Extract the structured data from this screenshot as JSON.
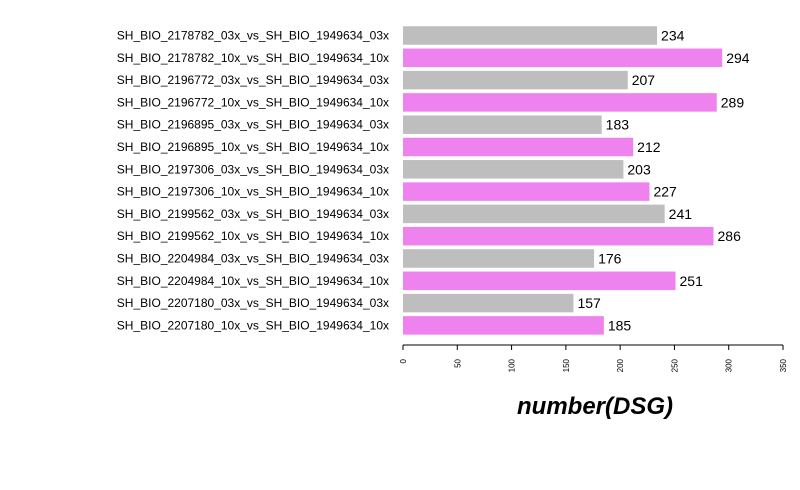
{
  "chart_data": {
    "type": "bar",
    "orientation": "horizontal",
    "categories": [
      "SH_BIO_2178782_03x_vs_SH_BIO_1949634_03x",
      "SH_BIO_2178782_10x_vs_SH_BIO_1949634_10x",
      "SH_BIO_2196772_03x_vs_SH_BIO_1949634_03x",
      "SH_BIO_2196772_10x_vs_SH_BIO_1949634_10x",
      "SH_BIO_2196895_03x_vs_SH_BIO_1949634_03x",
      "SH_BIO_2196895_10x_vs_SH_BIO_1949634_10x",
      "SH_BIO_2197306_03x_vs_SH_BIO_1949634_03x",
      "SH_BIO_2197306_10x_vs_SH_BIO_1949634_10x",
      "SH_BIO_2199562_03x_vs_SH_BIO_1949634_03x",
      "SH_BIO_2199562_10x_vs_SH_BIO_1949634_10x",
      "SH_BIO_2204984_03x_vs_SH_BIO_1949634_03x",
      "SH_BIO_2204984_10x_vs_SH_BIO_1949634_10x",
      "SH_BIO_2207180_03x_vs_SH_BIO_1949634_03x",
      "SH_BIO_2207180_10x_vs_SH_BIO_1949634_10x"
    ],
    "values": [
      234,
      294,
      207,
      289,
      183,
      212,
      203,
      227,
      241,
      286,
      176,
      251,
      157,
      185
    ],
    "bar_colors": [
      "#bebebe",
      "#ee82ee"
    ],
    "title": "",
    "xlabel": "number(DSG)",
    "ylabel": "",
    "xlim": [
      0,
      350
    ],
    "xticks": [
      0,
      50,
      100,
      150,
      200,
      250,
      300,
      350
    ],
    "grid": false,
    "legend": false
  }
}
